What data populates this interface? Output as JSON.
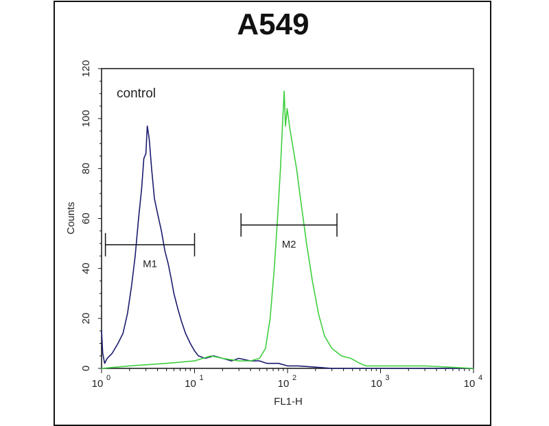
{
  "chart_data": {
    "type": "line",
    "title": "A549",
    "xlabel": "FL1-H",
    "ylabel": "Counts",
    "x_scale": "log",
    "xlim": [
      1,
      10000
    ],
    "ylim": [
      0,
      120
    ],
    "x_ticks": [
      {
        "base": "10",
        "exp": "0"
      },
      {
        "base": "10",
        "exp": "1"
      },
      {
        "base": "10",
        "exp": "2"
      },
      {
        "base": "10",
        "exp": "3"
      },
      {
        "base": "10",
        "exp": "4"
      }
    ],
    "y_ticks": [
      "0",
      "20",
      "40",
      "60",
      "80",
      "100",
      "120"
    ],
    "annotation": "control",
    "grid": false,
    "series": [
      {
        "color": "#1a1a6e",
        "points": [
          [
            1.0,
            15
          ],
          [
            1.03,
            6
          ],
          [
            1.08,
            2
          ],
          [
            1.15,
            4
          ],
          [
            1.3,
            6
          ],
          [
            1.5,
            10
          ],
          [
            1.7,
            14
          ],
          [
            1.9,
            22
          ],
          [
            2.1,
            33
          ],
          [
            2.3,
            45
          ],
          [
            2.5,
            60
          ],
          [
            2.7,
            72
          ],
          [
            2.85,
            84
          ],
          [
            3.0,
            86
          ],
          [
            3.1,
            97
          ],
          [
            3.25,
            92
          ],
          [
            3.45,
            80
          ],
          [
            3.7,
            68
          ],
          [
            4.0,
            62
          ],
          [
            4.4,
            55
          ],
          [
            4.8,
            47
          ],
          [
            5.2,
            42
          ],
          [
            5.6,
            36
          ],
          [
            6.0,
            30
          ],
          [
            6.6,
            24
          ],
          [
            7.2,
            19
          ],
          [
            8.0,
            14
          ],
          [
            9.0,
            10
          ],
          [
            10,
            7
          ],
          [
            11,
            5
          ],
          [
            13,
            4
          ],
          [
            16,
            5
          ],
          [
            20,
            4
          ],
          [
            25,
            3
          ],
          [
            30,
            4
          ],
          [
            40,
            3
          ],
          [
            50,
            3
          ],
          [
            60,
            2
          ],
          [
            80,
            2
          ],
          [
            100,
            1
          ],
          [
            130,
            1
          ],
          [
            200,
            0.5
          ],
          [
            300,
            0
          ],
          [
            10000,
            0
          ]
        ]
      },
      {
        "color": "#3ecf3e",
        "points": [
          [
            1,
            0
          ],
          [
            2,
            1
          ],
          [
            5,
            2
          ],
          [
            10,
            3
          ],
          [
            15,
            5
          ],
          [
            20,
            4
          ],
          [
            30,
            3
          ],
          [
            40,
            3
          ],
          [
            50,
            4
          ],
          [
            58,
            8
          ],
          [
            65,
            20
          ],
          [
            72,
            40
          ],
          [
            78,
            60
          ],
          [
            84,
            80
          ],
          [
            89,
            100
          ],
          [
            92,
            111
          ],
          [
            95,
            97
          ],
          [
            99,
            104
          ],
          [
            106,
            96
          ],
          [
            115,
            88
          ],
          [
            125,
            80
          ],
          [
            140,
            66
          ],
          [
            160,
            50
          ],
          [
            185,
            35
          ],
          [
            215,
            22
          ],
          [
            250,
            13
          ],
          [
            300,
            8
          ],
          [
            380,
            5
          ],
          [
            480,
            4
          ],
          [
            600,
            2
          ],
          [
            700,
            1
          ],
          [
            1000,
            1
          ],
          [
            3000,
            1
          ],
          [
            10000,
            0
          ]
        ]
      }
    ],
    "markers": [
      {
        "label": "M1",
        "x_range": [
          1.1,
          10
        ],
        "y": 49.5
      },
      {
        "label": "M2",
        "x_range": [
          31.6,
          340
        ],
        "y": 57.4
      }
    ]
  }
}
